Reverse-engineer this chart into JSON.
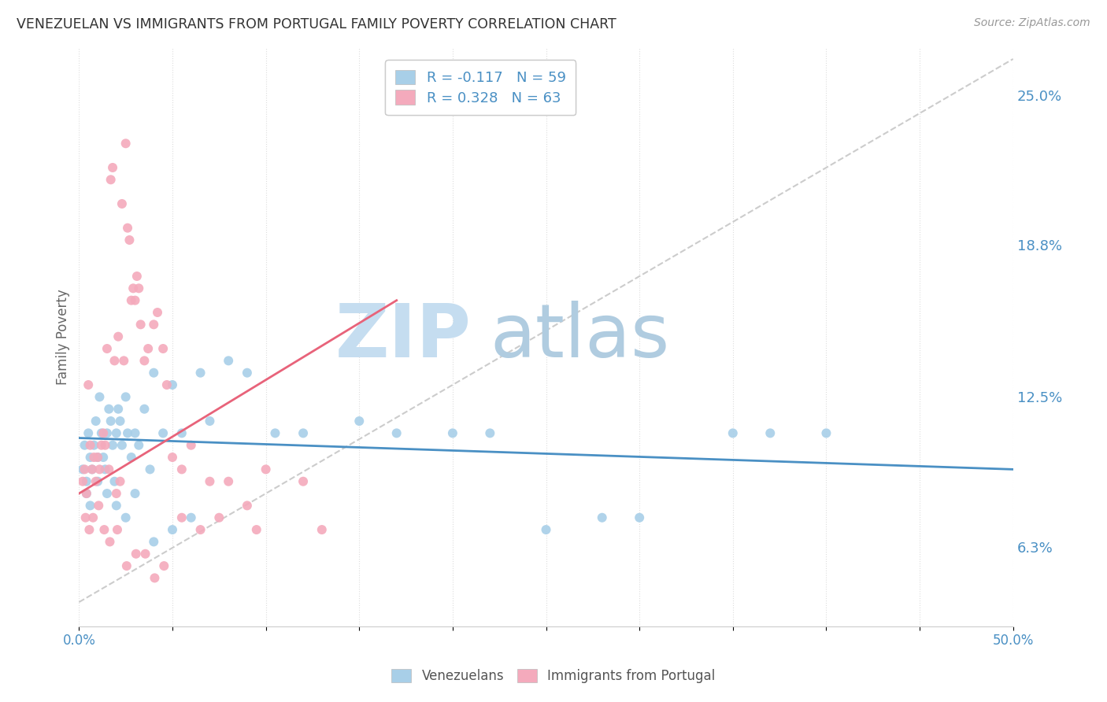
{
  "title": "VENEZUELAN VS IMMIGRANTS FROM PORTUGAL FAMILY POVERTY CORRELATION CHART",
  "source": "Source: ZipAtlas.com",
  "ylabel": "Family Poverty",
  "y_ticks": [
    6.3,
    12.5,
    18.8,
    25.0
  ],
  "y_tick_labels": [
    "6.3%",
    "12.5%",
    "18.8%",
    "25.0%"
  ],
  "x_range": [
    0.0,
    50.0
  ],
  "y_range": [
    3.0,
    27.0
  ],
  "legend_label_1": "R = -0.117   N = 59",
  "legend_label_2": "R = 0.328   N = 63",
  "legend_bottom_1": "Venezuelans",
  "legend_bottom_2": "Immigrants from Portugal",
  "color_blue": "#a8cfe8",
  "color_pink": "#f4aabc",
  "color_blue_dark": "#4a90c4",
  "color_pink_dark": "#e8637a",
  "watermark_zip": "ZIP",
  "watermark_atlas": "atlas",
  "venezuelan_x": [
    0.2,
    0.3,
    0.4,
    0.5,
    0.6,
    0.7,
    0.8,
    0.9,
    1.0,
    1.1,
    1.2,
    1.3,
    1.4,
    1.5,
    1.6,
    1.7,
    1.8,
    1.9,
    2.0,
    2.1,
    2.2,
    2.3,
    2.5,
    2.6,
    2.8,
    3.0,
    3.2,
    3.5,
    3.8,
    4.0,
    4.5,
    5.0,
    5.5,
    6.5,
    7.0,
    8.0,
    9.0,
    10.5,
    12.0,
    15.0,
    17.0,
    20.0,
    22.0,
    25.0,
    28.0,
    30.0,
    35.0,
    37.0,
    40.0,
    0.4,
    0.6,
    1.0,
    1.5,
    2.0,
    2.5,
    3.0,
    4.0,
    5.0,
    6.0
  ],
  "venezuelan_y": [
    9.5,
    10.5,
    9.0,
    11.0,
    10.0,
    9.5,
    10.5,
    11.5,
    10.0,
    12.5,
    11.0,
    10.0,
    9.5,
    11.0,
    12.0,
    11.5,
    10.5,
    9.0,
    11.0,
    12.0,
    11.5,
    10.5,
    12.5,
    11.0,
    10.0,
    11.0,
    10.5,
    12.0,
    9.5,
    13.5,
    11.0,
    13.0,
    11.0,
    13.5,
    11.5,
    14.0,
    13.5,
    11.0,
    11.0,
    11.5,
    11.0,
    11.0,
    11.0,
    7.0,
    7.5,
    7.5,
    11.0,
    11.0,
    11.0,
    8.5,
    8.0,
    9.0,
    8.5,
    8.0,
    7.5,
    8.5,
    6.5,
    7.0,
    7.5
  ],
  "portugal_x": [
    0.2,
    0.3,
    0.4,
    0.5,
    0.6,
    0.7,
    0.8,
    0.9,
    1.0,
    1.1,
    1.2,
    1.3,
    1.4,
    1.5,
    1.6,
    1.7,
    1.8,
    1.9,
    2.0,
    2.1,
    2.2,
    2.3,
    2.4,
    2.5,
    2.6,
    2.7,
    2.8,
    2.9,
    3.0,
    3.1,
    3.2,
    3.3,
    3.5,
    3.7,
    4.0,
    4.2,
    4.5,
    4.7,
    5.0,
    5.5,
    6.0,
    7.0,
    8.0,
    9.0,
    10.0,
    12.0,
    0.35,
    0.55,
    0.75,
    1.05,
    1.35,
    1.65,
    2.05,
    2.55,
    3.05,
    3.55,
    4.05,
    4.55,
    5.5,
    6.5,
    7.5,
    9.5,
    13.0
  ],
  "portugal_y": [
    9.0,
    9.5,
    8.5,
    13.0,
    10.5,
    9.5,
    10.0,
    9.0,
    10.0,
    9.5,
    10.5,
    11.0,
    10.5,
    14.5,
    9.5,
    21.5,
    22.0,
    14.0,
    8.5,
    15.0,
    9.0,
    20.5,
    14.0,
    23.0,
    19.5,
    19.0,
    16.5,
    17.0,
    16.5,
    17.5,
    17.0,
    15.5,
    14.0,
    14.5,
    15.5,
    16.0,
    14.5,
    13.0,
    10.0,
    9.5,
    10.5,
    9.0,
    9.0,
    8.0,
    9.5,
    9.0,
    7.5,
    7.0,
    7.5,
    8.0,
    7.0,
    6.5,
    7.0,
    5.5,
    6.0,
    6.0,
    5.0,
    5.5,
    7.5,
    7.0,
    7.5,
    7.0,
    7.0
  ],
  "ven_trendline_x": [
    0.0,
    50.0
  ],
  "ven_trendline_y": [
    10.8,
    9.5
  ],
  "port_trendline_x": [
    0.0,
    17.0
  ],
  "port_trendline_y": [
    8.5,
    16.5
  ],
  "ref_line_x": [
    0.0,
    50.0
  ],
  "ref_line_y": [
    4.0,
    26.5
  ]
}
